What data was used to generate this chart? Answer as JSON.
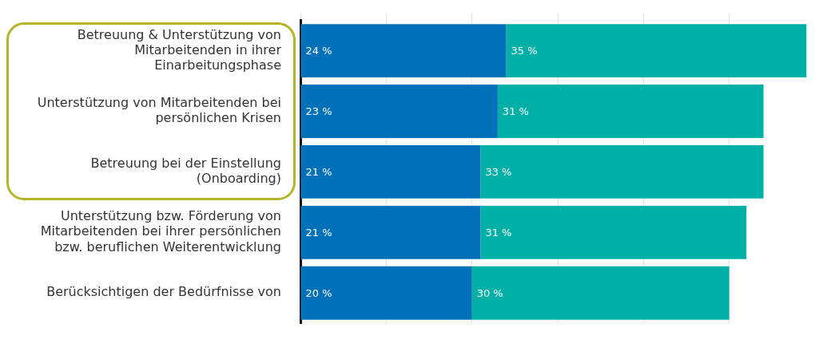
{
  "chart_data": {
    "type": "bar",
    "orientation": "horizontal",
    "stacked": true,
    "categories": [
      "Betreuung & Unterstützung von Mitarbeitenden in ihrer Einarbeitungsphase",
      "Unterstützung von Mitarbeitenden bei persönlichen Krisen",
      "Betreuung bei der Einstellung (Onboarding)",
      "Unterstützung bzw. Förderung von Mitarbeitenden bei ihrer persönlichen bzw. beruflichen Weiterentwicklung",
      "Berücksichtigen der Bedürfnisse von"
    ],
    "series": [
      {
        "color": "#0071b8",
        "values": [
          24,
          23,
          21,
          21,
          20
        ],
        "value_labels": [
          "24 %",
          "23 %",
          "21 %",
          "21 %",
          "20 %"
        ]
      },
      {
        "color": "#00b0a6",
        "values": [
          35,
          31,
          33,
          31,
          30
        ],
        "value_labels": [
          "35 %",
          "31 %",
          "33 %",
          "31 %",
          "30 %"
        ]
      }
    ],
    "grid": "x",
    "legend": false
  }
}
